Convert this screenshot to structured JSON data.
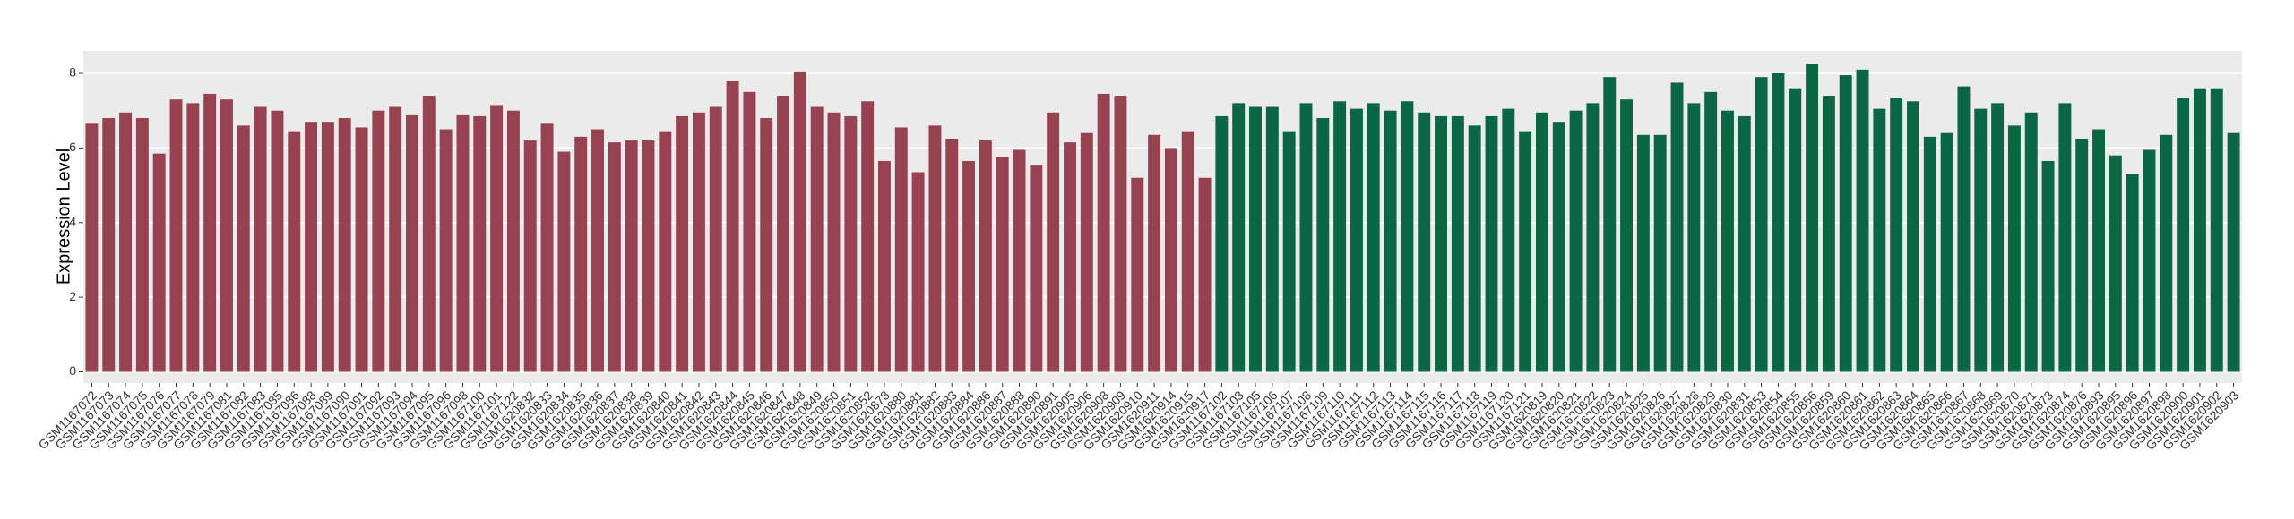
{
  "chart_data": {
    "type": "bar",
    "y_label": "Expression Level",
    "ylim": [
      -0.3,
      8.6
    ],
    "yticks": [
      0,
      2,
      4,
      6,
      8
    ],
    "grid": true,
    "series": [
      {
        "color": "#974250",
        "categories": [
          "GSM1167072",
          "GSM1167073",
          "GSM1167074",
          "GSM1167075",
          "GSM1167076",
          "GSM1167077",
          "GSM1167078",
          "GSM1167079",
          "GSM1167081",
          "GSM1167082",
          "GSM1167083",
          "GSM1167085",
          "GSM1167086",
          "GSM1167088",
          "GSM1167089",
          "GSM1167090",
          "GSM1167091",
          "GSM1167092",
          "GSM1167093",
          "GSM1167094",
          "GSM1167095",
          "GSM1167096",
          "GSM1167098",
          "GSM1167100",
          "GSM1167101",
          "GSM1167122",
          "GSM1620832",
          "GSM1620833",
          "GSM1620834",
          "GSM1620835",
          "GSM1620836",
          "GSM1620837",
          "GSM1620838",
          "GSM1620839",
          "GSM1620840",
          "GSM1620841",
          "GSM1620842",
          "GSM1620843",
          "GSM1620844",
          "GSM1620845",
          "GSM1620846",
          "GSM1620847",
          "GSM1620848",
          "GSM1620849",
          "GSM1620850",
          "GSM1620851",
          "GSM1620852",
          "GSM1620878",
          "GSM1620880",
          "GSM1620881",
          "GSM1620882",
          "GSM1620883",
          "GSM1620884",
          "GSM1620886",
          "GSM1620887",
          "GSM1620888",
          "GSM1620890",
          "GSM1620891",
          "GSM1620905",
          "GSM1620906",
          "GSM1620908",
          "GSM1620909",
          "GSM1620910",
          "GSM1620911",
          "GSM1620914",
          "GSM1620915",
          "GSM1620917"
        ],
        "values": [
          6.65,
          6.8,
          6.95,
          6.8,
          5.85,
          7.3,
          7.2,
          7.45,
          7.3,
          6.6,
          7.1,
          7.0,
          6.45,
          6.7,
          6.7,
          6.8,
          6.55,
          7.0,
          7.1,
          6.9,
          7.4,
          6.5,
          6.9,
          6.85,
          7.15,
          7.0,
          6.2,
          6.65,
          5.9,
          6.3,
          6.5,
          6.15,
          6.2,
          6.2,
          6.45,
          6.85,
          6.95,
          7.1,
          7.8,
          7.5,
          6.8,
          7.4,
          8.05,
          7.1,
          6.95,
          6.85,
          7.25,
          5.65,
          6.55,
          5.35,
          6.6,
          6.25,
          5.65,
          6.2,
          5.75,
          5.95,
          5.55,
          6.95,
          6.15,
          6.4,
          7.45,
          7.4,
          5.2,
          6.35,
          6.0,
          6.45,
          5.2
        ]
      },
      {
        "color": "#0a6645",
        "categories": [
          "GSM1167102",
          "GSM1167103",
          "GSM1167105",
          "GSM1167106",
          "GSM1167107",
          "GSM1167108",
          "GSM1167109",
          "GSM1167110",
          "GSM1167111",
          "GSM1167112",
          "GSM1167113",
          "GSM1167114",
          "GSM1167115",
          "GSM1167116",
          "GSM1167117",
          "GSM1167118",
          "GSM1167119",
          "GSM1167120",
          "GSM1167121",
          "GSM1620819",
          "GSM1620820",
          "GSM1620821",
          "GSM1620822",
          "GSM1620823",
          "GSM1620824",
          "GSM1620825",
          "GSM1620826",
          "GSM1620827",
          "GSM1620828",
          "GSM1620829",
          "GSM1620830",
          "GSM1620831",
          "GSM1620853",
          "GSM1620854",
          "GSM1620855",
          "GSM1620856",
          "GSM1620859",
          "GSM1620860",
          "GSM1620861",
          "GSM1620862",
          "GSM1620863",
          "GSM1620864",
          "GSM1620865",
          "GSM1620866",
          "GSM1620867",
          "GSM1620868",
          "GSM1620869",
          "GSM1620870",
          "GSM1620871",
          "GSM1620873",
          "GSM1620874",
          "GSM1620876",
          "GSM1620893",
          "GSM1620895",
          "GSM1620896",
          "GSM1620897",
          "GSM1620898",
          "GSM1620900",
          "GSM1620901",
          "GSM1620902",
          "GSM1620903"
        ],
        "values": [
          6.85,
          7.2,
          7.1,
          7.1,
          6.45,
          7.2,
          6.8,
          7.25,
          7.05,
          7.2,
          7.0,
          7.25,
          6.95,
          6.85,
          6.85,
          6.6,
          6.85,
          7.05,
          6.45,
          6.95,
          6.7,
          7.0,
          7.2,
          7.9,
          7.3,
          6.35,
          6.35,
          7.75,
          7.2,
          7.5,
          7.0,
          6.85,
          7.9,
          8.0,
          7.6,
          8.25,
          7.4,
          7.95,
          8.1,
          7.05,
          7.35,
          7.25,
          6.3,
          6.4,
          7.65,
          7.05,
          7.2,
          6.6,
          6.95,
          5.65,
          7.2,
          6.25,
          6.5,
          5.8,
          5.3,
          5.95,
          6.35,
          7.35,
          7.6,
          7.6,
          6.4
        ]
      }
    ]
  }
}
